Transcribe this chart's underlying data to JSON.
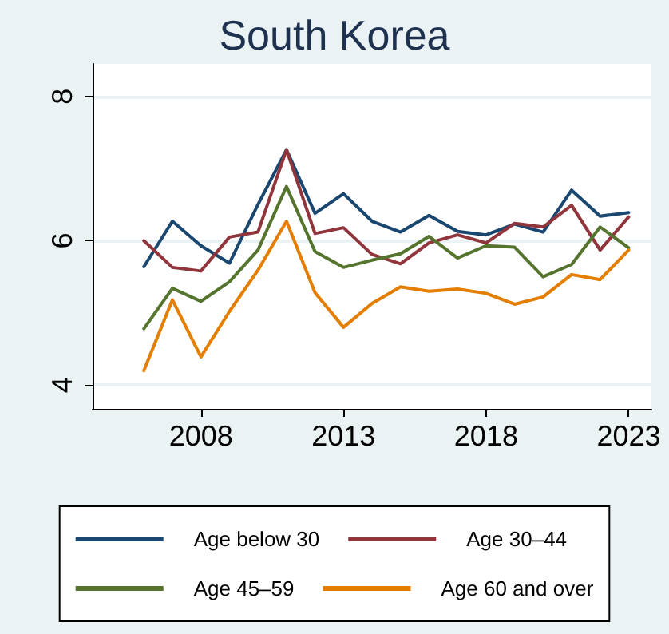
{
  "chart_data": {
    "type": "line",
    "title": "South Korea",
    "x": [
      2006,
      2007,
      2008,
      2009,
      2010,
      2011,
      2012,
      2013,
      2014,
      2015,
      2016,
      2017,
      2018,
      2019,
      2020,
      2021,
      2022,
      2023
    ],
    "series": [
      {
        "name": "Age below 30",
        "color": "#1a476f",
        "values": [
          5.64,
          6.27,
          5.93,
          5.69,
          6.5,
          7.26,
          6.38,
          6.65,
          6.27,
          6.12,
          6.35,
          6.13,
          6.08,
          6.23,
          6.12,
          6.7,
          6.34,
          6.39
        ]
      },
      {
        "name": "Age 30–44",
        "color": "#90353b",
        "values": [
          6.0,
          5.63,
          5.58,
          6.05,
          6.12,
          7.26,
          6.1,
          6.18,
          5.81,
          5.68,
          5.97,
          6.08,
          5.97,
          6.24,
          6.19,
          6.49,
          5.87,
          6.33
        ]
      },
      {
        "name": "Age 45–59",
        "color": "#55752f",
        "values": [
          4.78,
          5.34,
          5.16,
          5.43,
          5.87,
          6.75,
          5.85,
          5.63,
          5.73,
          5.82,
          6.06,
          5.76,
          5.93,
          5.91,
          5.5,
          5.67,
          6.19,
          5.9
        ]
      },
      {
        "name": "Age 60 and over",
        "color": "#e37e00",
        "values": [
          4.2,
          5.18,
          4.39,
          5.02,
          5.59,
          6.27,
          5.28,
          4.8,
          5.13,
          5.36,
          5.3,
          5.33,
          5.27,
          5.12,
          5.22,
          5.53,
          5.46,
          5.87
        ]
      }
    ],
    "xlim": [
      2004.2,
      2023.8
    ],
    "xticks": [
      2008,
      2013,
      2018,
      2023
    ],
    "ylim": [
      3.67,
      8.45
    ],
    "yticks": [
      4,
      6,
      8
    ],
    "grid": "y",
    "legend": "bottom",
    "marker": "none",
    "line_style": "solid"
  }
}
